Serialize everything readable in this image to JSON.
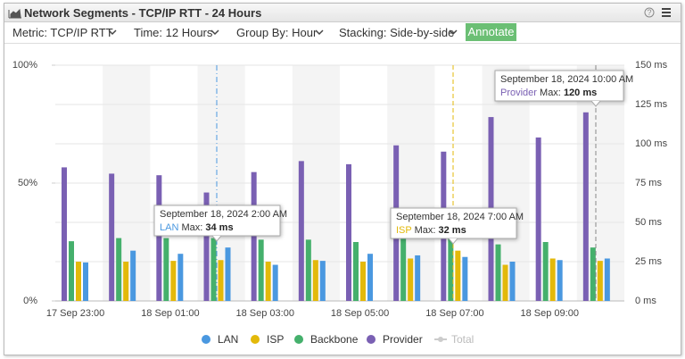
{
  "header": {
    "title": "Network Segments - TCP/IP RTT - 24 Hours"
  },
  "toolbar": {
    "metric": "Metric: TCP/IP RTT",
    "time": "Time: 12 Hours",
    "group_by": "Group By: Hour",
    "stacking": "Stacking: Side-by-side",
    "annotate": "Annotate"
  },
  "chart_data": {
    "type": "bar",
    "categories": [
      "17 Sep 23:00",
      null,
      "18 Sep 01:00",
      null,
      "18 Sep 03:00",
      null,
      "18 Sep 05:00",
      null,
      "18 Sep 07:00",
      null,
      "18 Sep 09:00",
      null
    ],
    "series": [
      {
        "name": "LAN",
        "color": "#4a98e0",
        "axis": "y2",
        "values": [
          24.5,
          32,
          30,
          34,
          23,
          25.5,
          30,
          29,
          28,
          25,
          26,
          27
        ]
      },
      {
        "name": "ISP",
        "color": "#e3b90a",
        "axis": "y2",
        "values": [
          25,
          25,
          25.5,
          26,
          25,
          26,
          25,
          27,
          32,
          23,
          27,
          25.5
        ]
      },
      {
        "name": "Backbone",
        "color": "#45b06c",
        "axis": "y2",
        "values": [
          38,
          40,
          40,
          40,
          39,
          39,
          37.5,
          42,
          41,
          36,
          37.5,
          34
        ]
      },
      {
        "name": "Provider",
        "color": "#7a60b3",
        "axis": "y2",
        "values": [
          85,
          81,
          80,
          69,
          82,
          89,
          87,
          99,
          95,
          117,
          104,
          120
        ]
      }
    ],
    "bar_order": [
      "Provider",
      "Backbone",
      "ISP",
      "LAN"
    ],
    "ylim": [
      0,
      100
    ],
    "yticks": [
      {
        "value": 0,
        "label": "0%"
      },
      {
        "value": 50,
        "label": "50%"
      },
      {
        "value": 100,
        "label": "100%"
      }
    ],
    "y2lim": [
      0,
      150
    ],
    "y2ticks": [
      {
        "value": 0,
        "label": "0 ms"
      },
      {
        "value": 25,
        "label": "25 ms"
      },
      {
        "value": 50,
        "label": "50 ms"
      },
      {
        "value": 75,
        "label": "75 ms"
      },
      {
        "value": 100,
        "label": "100 ms"
      },
      {
        "value": 125,
        "label": "125 ms"
      },
      {
        "value": 150,
        "label": "150 ms"
      }
    ],
    "grid": true,
    "legend": {
      "position": "bottom",
      "extra": "Total"
    },
    "tooltips": [
      {
        "title": "September 18, 2024 2:00 AM",
        "series": "LAN",
        "label": "Max:",
        "value_label": "34 ms"
      },
      {
        "title": "September 18, 2024 7:00 AM",
        "series": "ISP",
        "label": "Max:",
        "value_label": "32 ms"
      },
      {
        "title": "September 18, 2024 10:00 AM",
        "series": "Provider",
        "label": "Max:",
        "value_label": "120 ms"
      }
    ]
  }
}
